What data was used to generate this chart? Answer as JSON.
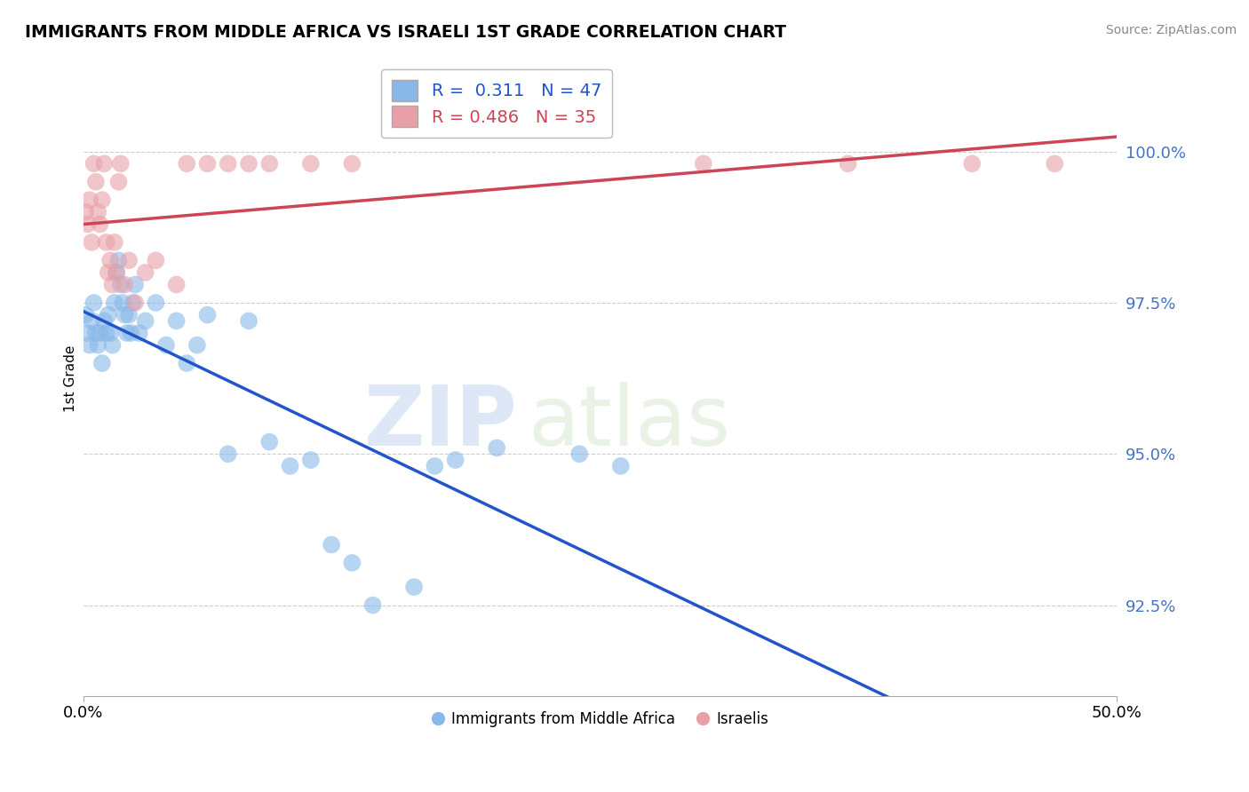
{
  "title": "IMMIGRANTS FROM MIDDLE AFRICA VS ISRAELI 1ST GRADE CORRELATION CHART",
  "source_text": "Source: ZipAtlas.com",
  "ylabel": "1st Grade",
  "xlim": [
    0.0,
    50.0
  ],
  "ylim": [
    91.0,
    101.5
  ],
  "yticks": [
    92.5,
    95.0,
    97.5,
    100.0
  ],
  "ytick_labels": [
    "92.5%",
    "95.0%",
    "97.5%",
    "100.0%"
  ],
  "xtick_labels": [
    "0.0%",
    "50.0%"
  ],
  "xtick_positions": [
    0.0,
    50.0
  ],
  "blue_R": 0.311,
  "blue_N": 47,
  "pink_R": 0.486,
  "pink_N": 35,
  "blue_color": "#88b8e8",
  "pink_color": "#e8a0a8",
  "blue_line_color": "#2255cc",
  "pink_line_color": "#cc4455",
  "legend_label_blue": "Immigrants from Middle Africa",
  "legend_label_pink": "Israelis",
  "watermark_zip": "ZIP",
  "watermark_atlas": "atlas",
  "blue_points_x": [
    0.1,
    0.2,
    0.3,
    0.4,
    0.5,
    0.6,
    0.7,
    0.8,
    0.9,
    1.0,
    1.1,
    1.2,
    1.3,
    1.4,
    1.5,
    1.6,
    1.7,
    1.8,
    1.9,
    2.0,
    2.1,
    2.2,
    2.3,
    2.4,
    2.5,
    2.7,
    3.0,
    3.5,
    4.0,
    4.5,
    5.0,
    5.5,
    6.0,
    7.0,
    8.0,
    9.0,
    10.0,
    11.0,
    12.0,
    13.0,
    14.0,
    16.0,
    17.0,
    18.0,
    20.0,
    24.0,
    26.0
  ],
  "blue_points_y": [
    97.3,
    97.0,
    96.8,
    97.2,
    97.5,
    97.0,
    96.8,
    97.0,
    96.5,
    97.2,
    97.0,
    97.3,
    97.0,
    96.8,
    97.5,
    98.0,
    98.2,
    97.8,
    97.5,
    97.3,
    97.0,
    97.3,
    97.0,
    97.5,
    97.8,
    97.0,
    97.2,
    97.5,
    96.8,
    97.2,
    96.5,
    96.8,
    97.3,
    95.0,
    97.2,
    95.2,
    94.8,
    94.9,
    93.5,
    93.2,
    92.5,
    92.8,
    94.8,
    94.9,
    95.1,
    95.0,
    94.8
  ],
  "pink_points_x": [
    0.1,
    0.2,
    0.3,
    0.4,
    0.5,
    0.6,
    0.7,
    0.8,
    0.9,
    1.0,
    1.1,
    1.2,
    1.3,
    1.4,
    1.5,
    1.6,
    1.7,
    1.8,
    2.0,
    2.2,
    2.5,
    3.0,
    3.5,
    4.5,
    5.0,
    6.0,
    7.0,
    8.0,
    9.0,
    11.0,
    13.0,
    30.0,
    37.0,
    43.0,
    47.0
  ],
  "pink_points_y": [
    99.0,
    98.8,
    99.2,
    98.5,
    99.8,
    99.5,
    99.0,
    98.8,
    99.2,
    99.8,
    98.5,
    98.0,
    98.2,
    97.8,
    98.5,
    98.0,
    99.5,
    99.8,
    97.8,
    98.2,
    97.5,
    98.0,
    98.2,
    97.8,
    99.8,
    99.8,
    99.8,
    99.8,
    99.8,
    99.8,
    99.8,
    99.8,
    99.8,
    99.8,
    99.8
  ]
}
